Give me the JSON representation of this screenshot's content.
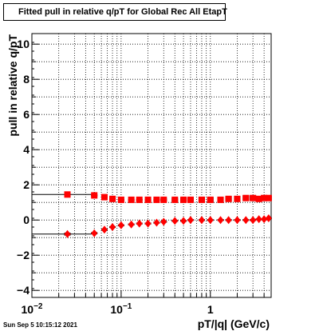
{
  "chart_data": {
    "type": "scatter",
    "title": "Fitted pull in relative q/pT for Global Rec All EtapT",
    "xlabel": "pT/|q| (GeV/c)",
    "ylabel": "pull in relative q/pT",
    "xscale": "log",
    "xlim": [
      0.01,
      4.8
    ],
    "ylim": [
      -4.4,
      10.6
    ],
    "grid": true,
    "x_tick_labels": [
      "10^-2",
      "10^-1",
      "1"
    ],
    "y_tick_labels": [
      "-4",
      "-2",
      "0",
      "2",
      "4",
      "6",
      "8",
      "10"
    ],
    "series": [
      {
        "marker": "square",
        "color": "#ff0000",
        "x": [
          0.025,
          0.05,
          0.065,
          0.08,
          0.1,
          0.13,
          0.16,
          0.2,
          0.25,
          0.3,
          0.4,
          0.5,
          0.6,
          0.8,
          1.0,
          1.3,
          1.6,
          2.0,
          2.5,
          3.0,
          3.5,
          4.0,
          4.5
        ],
        "y": [
          1.45,
          1.4,
          1.3,
          1.2,
          1.15,
          1.15,
          1.15,
          1.15,
          1.15,
          1.15,
          1.15,
          1.15,
          1.15,
          1.15,
          1.15,
          1.15,
          1.2,
          1.2,
          1.25,
          1.25,
          1.2,
          1.25,
          1.25
        ],
        "err": [
          0.08,
          0.06,
          0.05,
          0.05,
          0.05,
          0.05,
          0.05,
          0.05,
          0.05,
          0.08,
          0.1,
          0.12,
          0.12,
          0.15,
          0.15,
          0.15,
          0.15,
          0.15,
          0.15,
          0.15,
          0.15,
          0.15,
          0.15
        ]
      },
      {
        "marker": "diamond",
        "color": "#ff0000",
        "x": [
          0.025,
          0.05,
          0.065,
          0.08,
          0.1,
          0.13,
          0.16,
          0.2,
          0.25,
          0.3,
          0.4,
          0.5,
          0.6,
          0.8,
          1.0,
          1.3,
          1.6,
          2.0,
          2.5,
          3.0,
          3.5,
          4.0,
          4.5
        ],
        "y": [
          -0.8,
          -0.75,
          -0.55,
          -0.4,
          -0.3,
          -0.25,
          -0.2,
          -0.2,
          -0.15,
          -0.1,
          -0.05,
          -0.05,
          0.0,
          0.0,
          0.0,
          0.0,
          0.0,
          0.0,
          0.0,
          0.0,
          0.05,
          0.05,
          0.1
        ],
        "err": [
          0.08,
          0.06,
          0.05,
          0.05,
          0.05,
          0.05,
          0.05,
          0.05,
          0.05,
          0.05,
          0.05,
          0.05,
          0.05,
          0.05,
          0.05,
          0.05,
          0.05,
          0.05,
          0.05,
          0.05,
          0.05,
          0.05,
          0.05
        ]
      }
    ]
  },
  "footer": {
    "timestamp": "Sun Sep  5 10:15:12 2021"
  }
}
